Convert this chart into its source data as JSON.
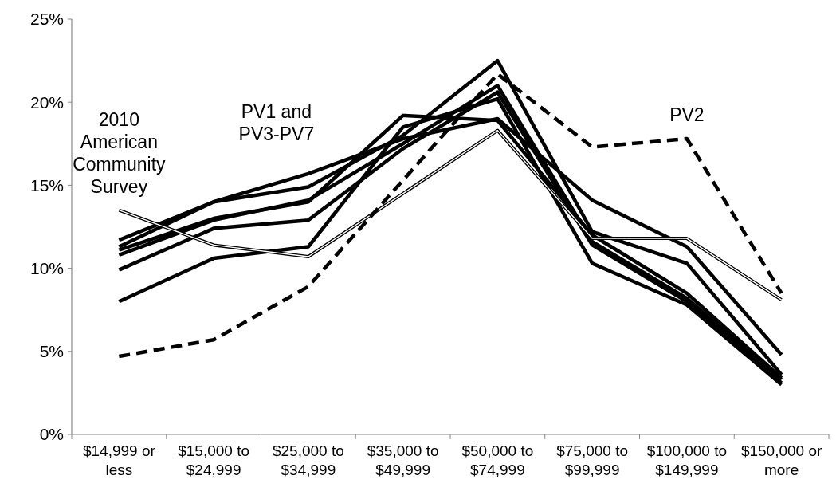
{
  "chart_data": {
    "type": "line",
    "categories": [
      "$14,999 or less",
      "$15,000 to $24,999",
      "$25,000 to $34,999",
      "$35,000 to $49,999",
      "$50,000 to $74,999",
      "$75,000 to $99,999",
      "$100,000 to $149,999",
      "$150,000 or more"
    ],
    "series": [
      {
        "color": "#000000",
        "values": [
          11.7,
          14.0,
          15.7,
          17.8,
          19.0,
          14.1,
          11.3,
          4.8
        ]
      },
      {
        "color": "#000000",
        "values": [
          11.3,
          14.0,
          14.9,
          18.0,
          22.5,
          12.2,
          10.3,
          3.6
        ]
      },
      {
        "color": "#000000",
        "values": [
          11.1,
          13.0,
          14.0,
          19.2,
          18.9,
          12.0,
          8.5,
          3.4
        ]
      },
      {
        "color": "#000000",
        "values": [
          10.8,
          12.9,
          14.1,
          17.5,
          21.0,
          11.6,
          8.2,
          3.3
        ]
      },
      {
        "color": "#000000",
        "values": [
          9.9,
          12.4,
          12.9,
          17.2,
          20.6,
          11.4,
          8.0,
          3.1
        ]
      },
      {
        "color": "#000000",
        "values": [
          8.0,
          10.6,
          11.3,
          18.5,
          20.2,
          10.3,
          7.8,
          3.0
        ]
      },
      {
        "name": "2010 American Community Survey",
        "color": "#000000",
        "values": [
          13.5,
          11.4,
          10.7,
          14.5,
          18.3,
          11.8,
          11.8,
          8.1
        ]
      },
      {
        "name": "PV2",
        "color": "#000000",
        "line_style": "dashed",
        "values": [
          4.7,
          5.7,
          8.9,
          15.3,
          21.7,
          17.3,
          17.8,
          8.5
        ]
      }
    ],
    "annotations": [
      "PV1 and PV3-PV7"
    ],
    "ylim": [
      0,
      25
    ],
    "yticks": [
      {
        "value": 0,
        "label": "0%"
      },
      {
        "value": 5,
        "label": "5%"
      },
      {
        "value": 10,
        "label": "10%"
      },
      {
        "value": 15,
        "label": "15%"
      },
      {
        "value": 20,
        "label": "20%"
      },
      {
        "value": 25,
        "label": "25%"
      }
    ],
    "grid": false,
    "legend": false,
    "marker": "none",
    "line_style": "solid"
  }
}
